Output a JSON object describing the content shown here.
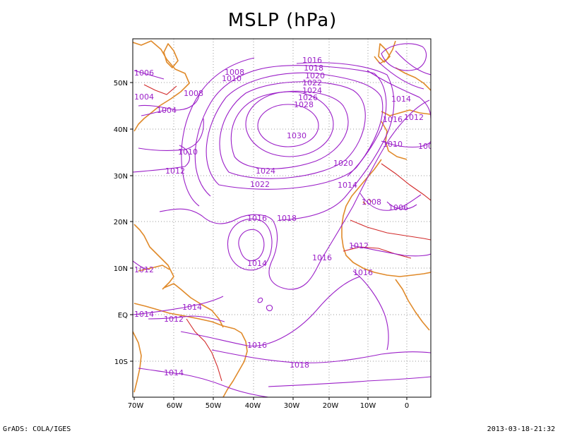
{
  "title": "MSLP (hPa)",
  "credit": "GrADS: COLA/IGES",
  "timestamp": "2013-03-18-21:32",
  "colors": {
    "isobar": "#9b1fc8",
    "coast": "#e08a2a",
    "border": "#d22a2a",
    "grid": "#999999"
  },
  "lon_labels": [
    "70W",
    "60W",
    "50W",
    "40W",
    "30W",
    "20W",
    "10W",
    "0"
  ],
  "lat_labels": [
    "50N",
    "40N",
    "30N",
    "20N",
    "10N",
    "EQ",
    "10S"
  ],
  "isobar_labels": [
    "1016",
    "1018",
    "1020",
    "1022",
    "1024",
    "1026",
    "1028",
    "1030",
    "1024",
    "1022",
    "1020",
    "1014",
    "1016",
    "1018",
    "1016",
    "1014",
    "1012",
    "1010",
    "1006",
    "1008",
    "1004",
    "1008",
    "1010",
    "1014",
    "1016",
    "1012",
    "1010",
    "1008",
    "1006",
    "1012",
    "1016",
    "1014",
    "1012",
    "1014",
    "1016",
    "1018",
    "1014",
    "1012",
    "1006",
    "1004"
  ]
}
